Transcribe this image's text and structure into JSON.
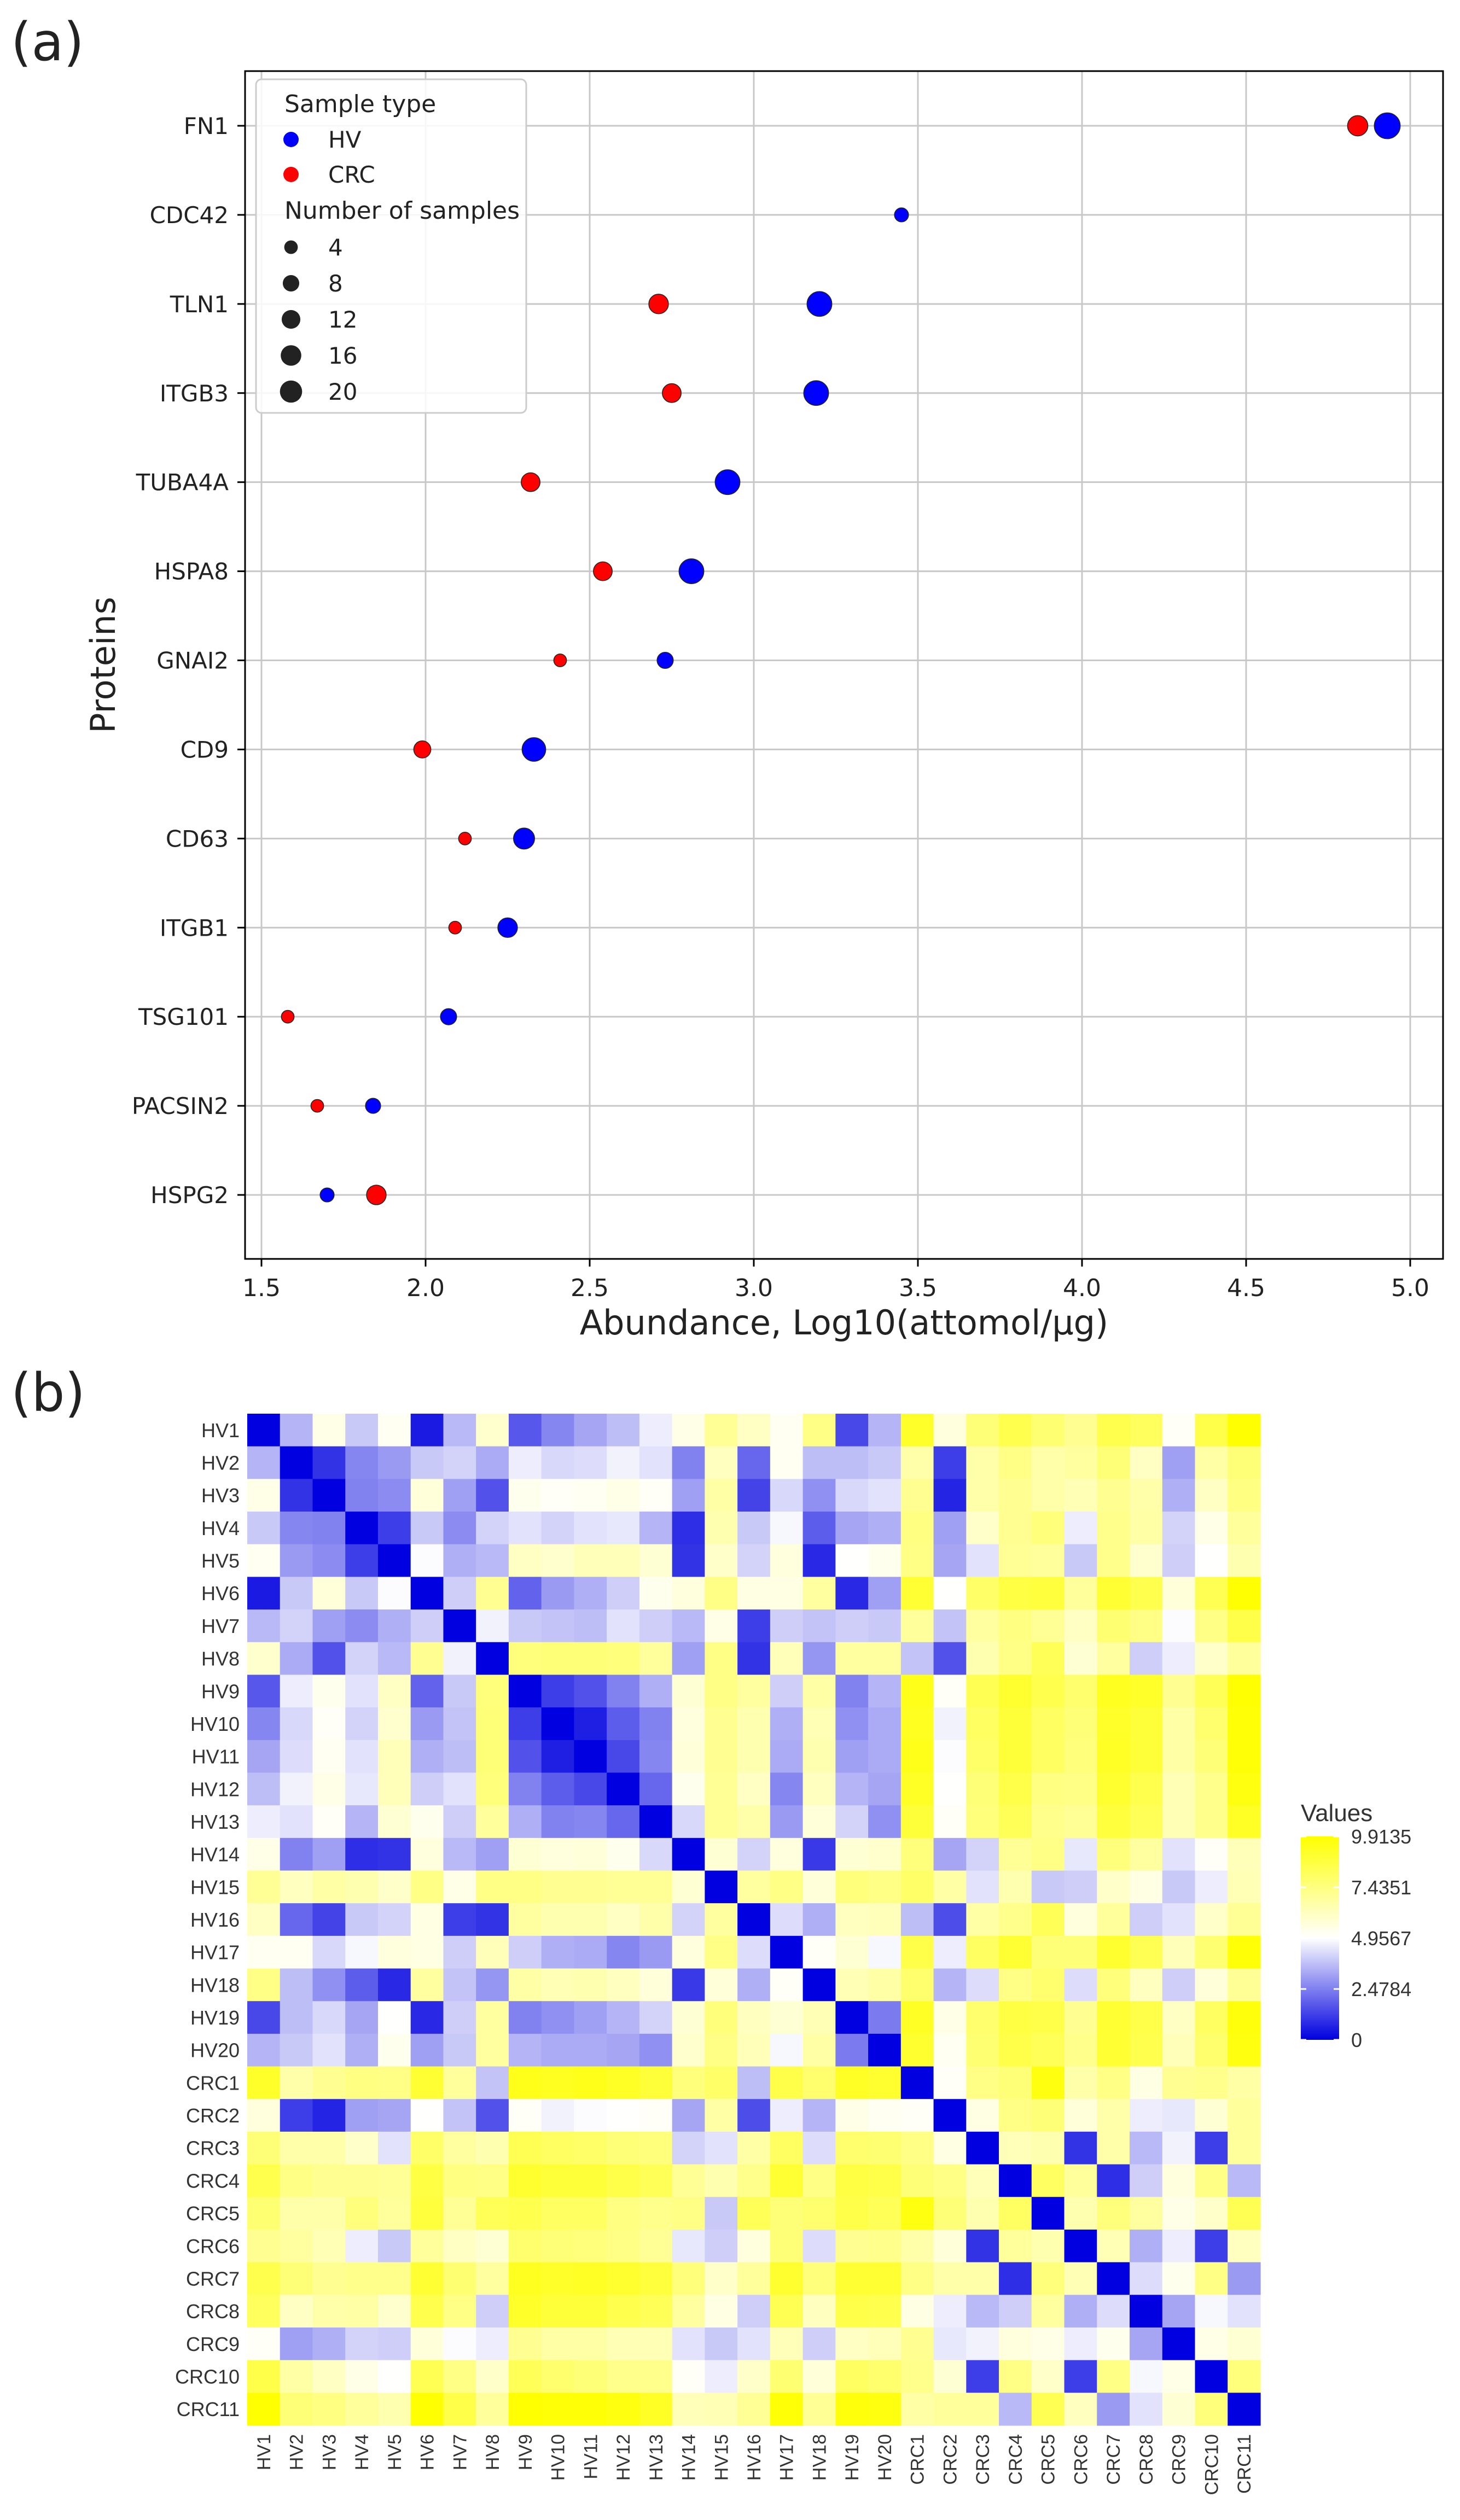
{
  "chart_data": [
    {
      "panel": "(a)",
      "type": "scatter",
      "xlabel": "Abundance, Log10(attomol/µg)",
      "ylabel": "Proteins",
      "xlim": [
        1.45,
        5.1
      ],
      "xticks": [
        "1.5",
        "2.0",
        "2.5",
        "3.0",
        "3.5",
        "4.0",
        "4.5",
        "5.0"
      ],
      "xtick_values": [
        1.5,
        2.0,
        2.5,
        3.0,
        3.5,
        4.0,
        4.5,
        5.0
      ],
      "grid": true,
      "legend_placement": "top-left",
      "legend": {
        "hue_title": "Sample type",
        "hue_entries": [
          {
            "label": "HV",
            "color": "#0000ff"
          },
          {
            "label": "CRC",
            "color": "#ff0000"
          }
        ],
        "size_title": "Number of samples",
        "size_entries": [
          {
            "label": "4",
            "n": 4
          },
          {
            "label": "8",
            "n": 8
          },
          {
            "label": "12",
            "n": 12
          },
          {
            "label": "16",
            "n": 16
          },
          {
            "label": "20",
            "n": 20
          }
        ]
      },
      "categories": [
        "FN1",
        "CDC42",
        "TLN1",
        "ITGB3",
        "TUBA4A",
        "HSPA8",
        "GNAI2",
        "CD9",
        "CD63",
        "ITGB1",
        "TSG101",
        "PACSIN2",
        "HSPG2"
      ],
      "series": [
        {
          "name": "HV",
          "color": "#0000ff",
          "x": [
            4.93,
            3.45,
            3.2,
            3.19,
            2.92,
            2.81,
            2.73,
            2.33,
            2.3,
            2.25,
            2.07,
            1.84,
            1.7
          ],
          "n": [
            20,
            4,
            18,
            18,
            18,
            18,
            6,
            16,
            12,
            10,
            6,
            5,
            4
          ]
        },
        {
          "name": "CRC",
          "color": "#ff0000",
          "x": [
            4.84,
            null,
            2.71,
            2.75,
            2.32,
            2.54,
            2.41,
            1.99,
            2.12,
            2.09,
            1.58,
            1.67,
            1.85
          ],
          "n": [
            11,
            null,
            10,
            9,
            9,
            9,
            3,
            7,
            3,
            3,
            3,
            3,
            10
          ]
        }
      ]
    },
    {
      "panel": "(b)",
      "type": "heatmap",
      "row_labels": [
        "HV1",
        "HV2",
        "HV3",
        "HV4",
        "HV5",
        "HV6",
        "HV7",
        "HV8",
        "HV9",
        "HV10",
        "HV11",
        "HV12",
        "HV13",
        "HV14",
        "HV15",
        "HV16",
        "HV17",
        "HV18",
        "HV19",
        "HV20",
        "CRC1",
        "CRC2",
        "CRC3",
        "CRC4",
        "CRC5",
        "CRC6",
        "CRC7",
        "CRC8",
        "CRC9",
        "CRC10",
        "CRC11"
      ],
      "col_labels": [
        "HV1",
        "HV2",
        "HV3",
        "HV4",
        "HV5",
        "HV6",
        "HV7",
        "HV8",
        "HV9",
        "HV10",
        "HV11",
        "HV12",
        "HV13",
        "HV14",
        "HV15",
        "HV16",
        "HV17",
        "HV18",
        "HV19",
        "HV20",
        "CRC1",
        "CRC2",
        "CRC3",
        "CRC4",
        "CRC5",
        "CRC6",
        "CRC7",
        "CRC8",
        "CRC9",
        "CRC10",
        "CRC11"
      ],
      "colorbar": {
        "title": "Values",
        "ticks": [
          "9.9135",
          "7.4351",
          "4.9567",
          "2.4784",
          "0"
        ],
        "tick_values": [
          9.9135,
          7.4351,
          4.9567,
          2.4784,
          0
        ],
        "range": [
          0,
          9.9135
        ],
        "colors": [
          "#0000e0",
          "#ffffff",
          "#ffff00"
        ]
      },
      "matrix": [
        [
          0.0,
          3.5,
          5.4,
          3.9,
          5.2,
          0.5,
          3.6,
          5.9,
          1.7,
          2.6,
          3.2,
          3.7,
          4.6,
          5.4,
          7.0,
          6.1,
          5.2,
          7.3,
          1.4,
          3.5,
          9.1,
          5.6,
          7.6,
          8.4,
          7.7,
          7.1,
          8.4,
          8.1,
          5.1,
          8.5,
          9.9
        ],
        [
          3.5,
          0.0,
          1.0,
          2.6,
          3.0,
          3.9,
          4.1,
          3.3,
          4.6,
          4.2,
          4.3,
          4.7,
          4.4,
          2.5,
          6.2,
          2.0,
          5.2,
          3.7,
          3.7,
          3.9,
          6.6,
          1.2,
          6.6,
          7.3,
          6.6,
          6.8,
          7.6,
          6.1,
          3.1,
          6.7,
          7.6
        ],
        [
          5.4,
          1.0,
          0.0,
          2.5,
          2.7,
          5.7,
          3.1,
          1.6,
          5.3,
          5.1,
          5.2,
          5.4,
          5.1,
          3.1,
          6.7,
          1.3,
          4.2,
          2.8,
          4.2,
          4.4,
          7.1,
          0.7,
          6.6,
          7.1,
          6.6,
          6.4,
          7.1,
          6.6,
          3.4,
          6.1,
          7.4
        ],
        [
          3.9,
          2.6,
          2.5,
          0.0,
          1.2,
          3.9,
          2.7,
          4.1,
          4.4,
          4.1,
          4.4,
          4.5,
          3.5,
          0.9,
          6.5,
          3.9,
          4.8,
          1.8,
          3.2,
          3.4,
          7.4,
          3.1,
          6.0,
          7.1,
          7.5,
          4.6,
          7.2,
          6.7,
          4.1,
          5.4,
          6.9
        ],
        [
          5.2,
          3.0,
          2.7,
          1.2,
          0.0,
          4.9,
          3.4,
          3.6,
          6.1,
          5.9,
          6.3,
          6.3,
          5.8,
          1.0,
          6.0,
          4.1,
          5.6,
          0.8,
          5.0,
          5.3,
          7.3,
          3.2,
          4.4,
          7.0,
          6.9,
          3.9,
          7.2,
          5.9,
          4.0,
          5.0,
          6.5
        ],
        [
          0.5,
          3.9,
          5.7,
          3.9,
          4.9,
          0.0,
          4.0,
          7.1,
          1.9,
          3.0,
          3.4,
          4.0,
          5.3,
          5.6,
          7.3,
          5.5,
          5.5,
          6.8,
          0.8,
          3.1,
          8.9,
          5.0,
          7.9,
          8.6,
          8.7,
          6.9,
          8.9,
          8.4,
          5.7,
          8.3,
          9.9
        ],
        [
          3.6,
          4.1,
          3.1,
          2.7,
          3.4,
          4.0,
          0.0,
          4.7,
          3.9,
          3.8,
          3.7,
          4.4,
          4.0,
          3.6,
          5.4,
          1.2,
          4.0,
          3.8,
          4.0,
          3.9,
          6.9,
          3.8,
          6.8,
          7.4,
          7.0,
          6.1,
          7.7,
          7.3,
          4.9,
          7.3,
          8.5
        ],
        [
          5.9,
          3.3,
          1.6,
          4.1,
          3.6,
          7.1,
          4.7,
          0.0,
          7.5,
          7.6,
          7.6,
          7.5,
          6.9,
          3.1,
          7.3,
          1.0,
          6.3,
          2.9,
          6.8,
          6.8,
          3.8,
          1.6,
          6.5,
          7.3,
          8.2,
          5.8,
          6.8,
          4.0,
          4.6,
          6.0,
          6.9
        ],
        [
          1.7,
          4.6,
          5.3,
          4.4,
          6.1,
          1.9,
          3.9,
          7.5,
          0.0,
          1.2,
          1.6,
          2.5,
          3.4,
          5.8,
          7.3,
          6.8,
          4.0,
          6.7,
          2.5,
          3.5,
          9.4,
          5.1,
          8.3,
          9.0,
          8.4,
          7.8,
          9.3,
          9.1,
          7.1,
          8.2,
          9.9
        ],
        [
          2.6,
          4.2,
          5.1,
          4.1,
          5.9,
          3.0,
          3.8,
          7.6,
          1.2,
          0.0,
          0.6,
          1.8,
          2.5,
          5.6,
          7.1,
          6.5,
          3.4,
          6.4,
          2.8,
          3.3,
          9.3,
          4.7,
          8.0,
          8.8,
          8.0,
          7.6,
          9.1,
          8.8,
          6.7,
          7.8,
          9.8
        ],
        [
          3.2,
          4.3,
          5.2,
          4.4,
          6.3,
          3.4,
          3.7,
          7.6,
          1.6,
          0.6,
          0.0,
          1.4,
          2.6,
          5.7,
          7.1,
          6.5,
          3.3,
          6.5,
          3.1,
          3.3,
          9.4,
          4.9,
          7.9,
          8.8,
          8.0,
          7.5,
          9.2,
          8.8,
          6.7,
          7.6,
          9.8
        ],
        [
          3.7,
          4.7,
          5.4,
          4.5,
          6.3,
          4.0,
          4.4,
          7.5,
          2.5,
          1.8,
          1.4,
          0.0,
          2.0,
          5.3,
          7.0,
          6.1,
          2.6,
          6.2,
          3.5,
          3.2,
          9.2,
          5.0,
          7.6,
          8.5,
          7.4,
          7.3,
          9.0,
          8.4,
          6.4,
          7.2,
          9.6
        ],
        [
          4.6,
          4.4,
          5.1,
          3.5,
          5.8,
          5.3,
          4.0,
          6.9,
          3.4,
          2.5,
          2.6,
          2.0,
          0.0,
          4.2,
          7.0,
          6.6,
          3.0,
          5.7,
          4.1,
          2.8,
          8.8,
          5.1,
          7.5,
          8.2,
          7.2,
          7.0,
          8.7,
          8.2,
          6.4,
          7.2,
          9.2
        ],
        [
          5.4,
          2.5,
          3.1,
          0.9,
          1.0,
          5.6,
          3.6,
          3.1,
          5.8,
          5.6,
          5.7,
          5.3,
          4.2,
          0.0,
          5.8,
          4.1,
          5.6,
          1.1,
          5.8,
          5.9,
          7.5,
          3.2,
          4.1,
          7.0,
          7.3,
          4.5,
          7.5,
          6.8,
          4.4,
          5.1,
          6.3
        ],
        [
          7.0,
          6.2,
          6.7,
          6.5,
          6.0,
          7.3,
          5.4,
          7.3,
          7.3,
          7.1,
          7.1,
          7.0,
          7.0,
          5.8,
          0.0,
          6.8,
          7.3,
          5.7,
          7.5,
          7.3,
          7.9,
          6.7,
          4.4,
          6.5,
          3.9,
          4.0,
          6.0,
          5.5,
          3.9,
          4.6,
          6.4
        ],
        [
          6.1,
          2.0,
          1.3,
          3.9,
          4.1,
          5.5,
          1.2,
          1.0,
          6.8,
          6.5,
          6.5,
          6.1,
          6.6,
          4.1,
          6.8,
          0.0,
          4.3,
          3.4,
          6.2,
          6.3,
          3.7,
          1.5,
          6.7,
          7.2,
          8.2,
          5.6,
          6.9,
          4.0,
          4.4,
          6.0,
          7.0
        ],
        [
          5.2,
          5.2,
          4.2,
          4.8,
          5.6,
          5.5,
          4.0,
          6.3,
          4.0,
          3.4,
          3.3,
          2.6,
          3.0,
          5.6,
          7.3,
          4.3,
          0.0,
          5.1,
          5.8,
          4.8,
          8.5,
          4.6,
          8.0,
          8.9,
          7.6,
          7.6,
          9.0,
          8.3,
          6.3,
          7.7,
          9.8
        ],
        [
          7.3,
          3.7,
          2.8,
          1.8,
          0.8,
          6.8,
          3.8,
          2.9,
          6.7,
          6.4,
          6.5,
          6.2,
          5.7,
          1.1,
          5.7,
          3.4,
          5.1,
          0.0,
          6.4,
          6.7,
          7.8,
          3.5,
          4.3,
          7.3,
          7.8,
          4.3,
          7.5,
          6.2,
          4.0,
          5.7,
          7.0
        ],
        [
          1.4,
          3.7,
          4.2,
          3.2,
          5.0,
          0.8,
          4.0,
          6.8,
          2.5,
          2.8,
          3.1,
          3.5,
          4.1,
          5.8,
          7.5,
          6.2,
          5.8,
          6.4,
          0.0,
          2.4,
          9.2,
          5.4,
          7.8,
          8.6,
          8.5,
          7.1,
          8.9,
          8.5,
          6.1,
          8.0,
          9.7
        ],
        [
          3.5,
          3.9,
          4.4,
          3.4,
          5.3,
          3.1,
          3.9,
          6.8,
          3.5,
          3.3,
          3.3,
          3.2,
          2.8,
          5.9,
          7.3,
          6.3,
          4.8,
          6.7,
          2.4,
          0.0,
          9.0,
          5.2,
          7.7,
          8.5,
          8.2,
          7.2,
          8.9,
          8.4,
          6.3,
          7.8,
          9.6
        ],
        [
          9.1,
          6.6,
          7.1,
          7.4,
          7.3,
          8.9,
          6.9,
          3.8,
          9.4,
          9.3,
          9.4,
          9.2,
          8.8,
          7.5,
          7.9,
          3.7,
          8.5,
          7.8,
          9.2,
          9.0,
          0.0,
          5.1,
          7.3,
          7.6,
          9.6,
          6.6,
          7.3,
          5.5,
          7.1,
          7.2,
          6.7
        ],
        [
          5.6,
          1.2,
          0.7,
          3.1,
          3.2,
          5.0,
          3.8,
          1.6,
          5.1,
          4.7,
          4.9,
          5.0,
          5.1,
          3.2,
          6.7,
          1.5,
          4.6,
          3.5,
          5.4,
          5.2,
          5.1,
          0.0,
          5.5,
          7.3,
          7.6,
          5.7,
          6.6,
          4.6,
          4.5,
          5.8,
          6.9
        ],
        [
          7.6,
          6.6,
          6.6,
          6.0,
          4.4,
          7.9,
          6.8,
          6.5,
          8.3,
          8.0,
          7.9,
          7.6,
          7.5,
          4.1,
          4.4,
          6.7,
          8.0,
          4.3,
          7.8,
          7.7,
          7.3,
          5.5,
          0.0,
          6.3,
          6.5,
          1.0,
          6.6,
          3.6,
          4.7,
          1.2,
          6.9
        ],
        [
          8.4,
          7.3,
          7.1,
          7.1,
          7.0,
          8.6,
          7.4,
          7.3,
          9.0,
          8.8,
          8.8,
          8.5,
          8.2,
          7.0,
          6.5,
          7.2,
          8.9,
          7.3,
          8.6,
          8.5,
          7.6,
          7.3,
          6.3,
          0.0,
          8.0,
          6.9,
          0.9,
          4.0,
          5.6,
          7.3,
          3.6
        ],
        [
          7.7,
          6.6,
          6.6,
          7.5,
          6.9,
          8.7,
          7.0,
          8.2,
          8.4,
          8.0,
          8.0,
          7.4,
          7.2,
          7.3,
          3.9,
          8.2,
          7.6,
          7.8,
          8.5,
          8.2,
          9.6,
          7.6,
          6.5,
          8.0,
          0.0,
          6.5,
          7.5,
          6.8,
          5.4,
          6.0,
          8.3
        ],
        [
          7.1,
          6.8,
          6.4,
          4.6,
          3.9,
          6.9,
          6.1,
          5.8,
          7.8,
          7.6,
          7.5,
          7.3,
          7.0,
          4.5,
          4.0,
          5.6,
          7.6,
          4.3,
          7.1,
          7.2,
          6.6,
          5.7,
          1.0,
          6.9,
          6.5,
          0.0,
          6.4,
          3.4,
          4.6,
          1.2,
          6.2
        ],
        [
          8.4,
          7.6,
          7.1,
          7.2,
          7.2,
          8.9,
          7.7,
          6.8,
          9.3,
          9.1,
          9.2,
          9.0,
          8.7,
          7.5,
          6.0,
          6.9,
          9.0,
          7.5,
          8.9,
          8.9,
          7.3,
          6.6,
          6.6,
          0.9,
          7.5,
          6.4,
          0.0,
          4.3,
          5.3,
          7.3,
          3.0
        ],
        [
          8.1,
          6.1,
          6.6,
          6.7,
          5.9,
          8.4,
          7.3,
          4.0,
          9.1,
          8.8,
          8.8,
          8.4,
          8.2,
          6.8,
          5.5,
          4.0,
          8.3,
          6.2,
          8.5,
          8.4,
          5.5,
          4.6,
          3.6,
          4.0,
          6.8,
          3.4,
          4.3,
          0.0,
          3.2,
          4.8,
          4.4
        ],
        [
          5.1,
          3.1,
          3.4,
          4.1,
          4.0,
          5.7,
          4.9,
          4.6,
          7.1,
          6.7,
          6.7,
          6.4,
          6.4,
          4.4,
          3.9,
          4.4,
          6.3,
          4.0,
          6.1,
          6.3,
          7.1,
          4.5,
          4.7,
          5.6,
          5.4,
          4.6,
          5.3,
          3.2,
          0.0,
          5.4,
          5.8
        ],
        [
          8.5,
          6.7,
          6.1,
          5.4,
          5.0,
          8.3,
          7.3,
          6.0,
          8.2,
          7.8,
          7.6,
          7.2,
          7.2,
          5.1,
          4.6,
          6.0,
          7.7,
          5.7,
          8.0,
          7.8,
          7.2,
          5.8,
          1.2,
          7.3,
          6.0,
          1.2,
          7.3,
          4.8,
          5.4,
          0.0,
          7.5
        ],
        [
          9.9,
          7.6,
          7.4,
          6.9,
          6.5,
          9.9,
          8.5,
          6.9,
          9.9,
          9.8,
          9.8,
          9.6,
          9.2,
          6.3,
          6.4,
          7.0,
          9.8,
          7.0,
          9.7,
          9.6,
          6.7,
          6.9,
          6.9,
          3.6,
          8.3,
          6.2,
          3.0,
          4.4,
          5.8,
          7.5,
          0.0
        ]
      ]
    }
  ],
  "panel_labels": {
    "a": "(a)",
    "b": "(b)"
  }
}
